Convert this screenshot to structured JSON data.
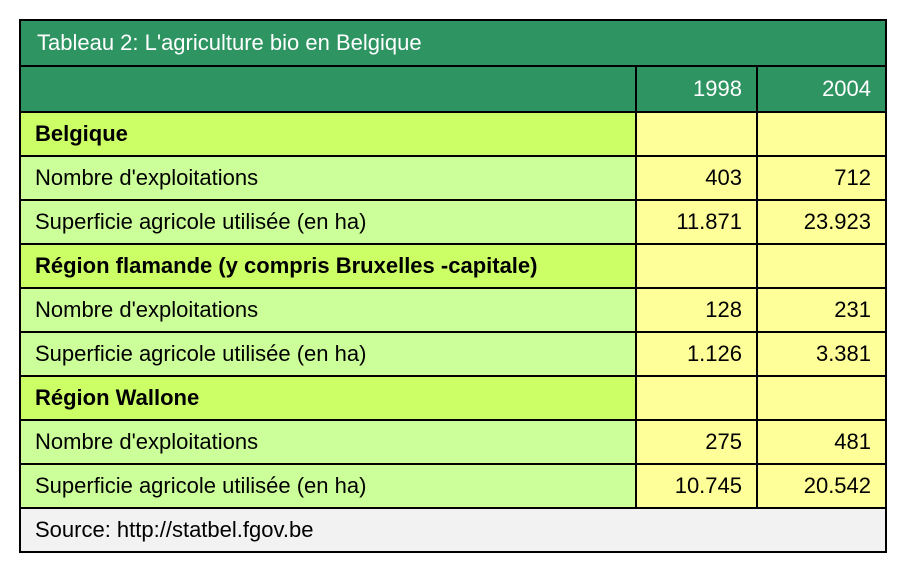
{
  "table": {
    "title": "Tableau 2: L'agriculture bio en Belgique",
    "years": [
      "1998",
      "2004"
    ],
    "sections": [
      {
        "name": "Belgique",
        "rows": [
          {
            "label": "Nombre d'exploitations",
            "values": [
              "403",
              "712"
            ]
          },
          {
            "label": "Superficie agricole utilisée (en ha)",
            "values": [
              "11.871",
              "23.923"
            ]
          }
        ]
      },
      {
        "name": "Région flamande (y compris Bruxelles -capitale)",
        "rows": [
          {
            "label": "Nombre d'exploitations",
            "values": [
              "128",
              "231"
            ]
          },
          {
            "label": "Superficie agricole utilisée (en ha)",
            "values": [
              "1.126",
              "3.381"
            ]
          }
        ]
      },
      {
        "name": "Région Wallone",
        "rows": [
          {
            "label": "Nombre d'exploitations",
            "values": [
              "275",
              "481"
            ]
          },
          {
            "label": "Superficie agricole utilisée (en ha)",
            "values": [
              "10.745",
              "20.542"
            ]
          }
        ]
      }
    ],
    "source": "Source: http://statbel.fgov.be"
  },
  "colors": {
    "header_green": "#2e9461",
    "section_lime": "#ccff66",
    "row_light_green": "#ccff99",
    "value_yellow": "#ffff99",
    "source_gray": "#f2f2f2"
  }
}
